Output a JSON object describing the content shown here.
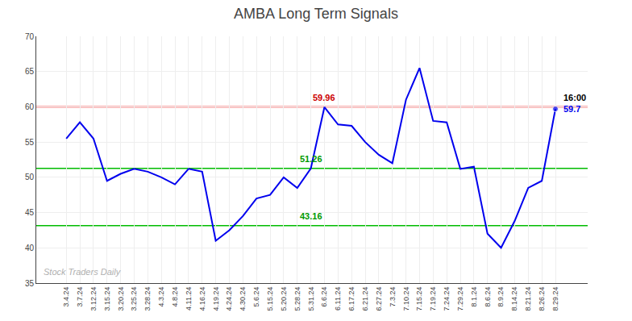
{
  "chart_data": {
    "type": "line",
    "title": "AMBA Long Term Signals",
    "categories": [
      "3.4.24",
      "3.7.24",
      "3.12.24",
      "3.15.24",
      "3.20.24",
      "3.25.24",
      "3.28.24",
      "4.3.24",
      "4.8.24",
      "4.11.24",
      "4.16.24",
      "4.19.24",
      "4.24.24",
      "4.30.24",
      "5.6.24",
      "5.15.24",
      "5.20.24",
      "5.28.24",
      "5.31.24",
      "6.6.24",
      "6.11.24",
      "6.17.24",
      "6.21.24",
      "6.27.24",
      "7.3.24",
      "7.10.24",
      "7.15.24",
      "7.19.24",
      "7.24.24",
      "7.29.24",
      "8.1.24",
      "8.6.24",
      "8.9.24",
      "8.14.24",
      "8.21.24",
      "8.26.24",
      "8.29.24"
    ],
    "values": [
      55.5,
      57.8,
      55.5,
      49.5,
      50.5,
      51.2,
      50.8,
      50.0,
      49.0,
      51.2,
      50.8,
      41.0,
      42.5,
      44.5,
      47.0,
      47.5,
      50.0,
      48.5,
      51.26,
      59.96,
      57.5,
      57.3,
      55.0,
      53.2,
      52.0,
      61.0,
      65.5,
      58.0,
      57.8,
      51.2,
      51.5,
      42.0,
      40.0,
      43.8,
      48.5,
      49.5,
      59.7
    ],
    "color": "#0000ee",
    "ylim": [
      35,
      70
    ],
    "yticks": [
      35,
      40,
      45,
      50,
      55,
      60,
      65,
      70
    ],
    "grid": true,
    "reference_lines": [
      {
        "value": 60.0,
        "color": "#ffb0b0"
      },
      {
        "value": 51.26,
        "color": "#00bb00"
      },
      {
        "value": 43.16,
        "color": "#00bb00"
      }
    ],
    "annotations": [
      {
        "text": "59.96",
        "category": "6.6.24",
        "value": 59.96,
        "color": "#cc0000"
      },
      {
        "text": "51.26",
        "category": "5.31.24",
        "value": 51.26,
        "color": "#009900"
      },
      {
        "text": "43.16",
        "category": "5.31.24",
        "value": 43.16,
        "color": "#009900"
      },
      {
        "text": "16:00",
        "category": "8.29.24",
        "value": 59.7
      },
      {
        "text": "59.7",
        "category": "8.29.24",
        "value": 59.7,
        "color": "#0000ee"
      }
    ],
    "watermark": {
      "text": "Stock Traders Daily",
      "color": "#b0b0b0"
    }
  }
}
